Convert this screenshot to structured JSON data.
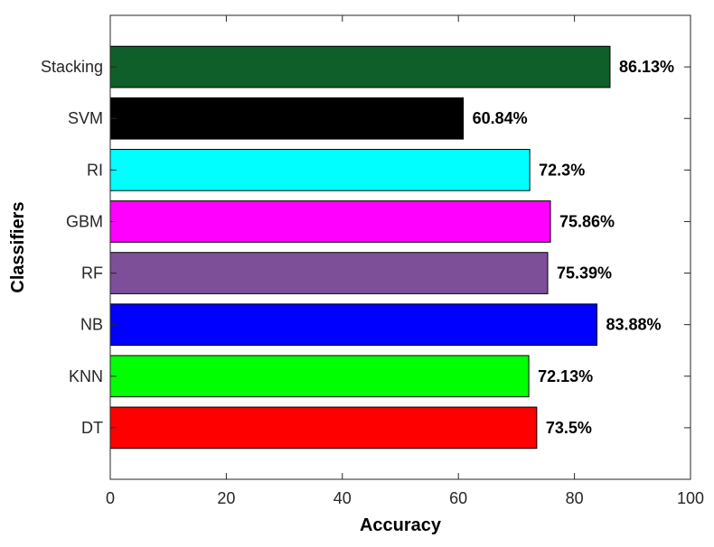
{
  "chart_data": {
    "type": "bar",
    "orientation": "horizontal",
    "categories": [
      "DT",
      "KNN",
      "NB",
      "RF",
      "GBM",
      "RI",
      "SVM",
      "Stacking"
    ],
    "values": [
      73.5,
      72.13,
      83.88,
      75.39,
      75.86,
      72.3,
      60.84,
      86.13
    ],
    "data_labels": [
      "73.5%",
      "72.13%",
      "83.88%",
      "75.39%",
      "75.86%",
      "72.3%",
      "60.84%",
      "86.13%"
    ],
    "colors": [
      "#ff0000",
      "#00ff00",
      "#0000ff",
      "#7e4f99",
      "#ff00ff",
      "#00ffff",
      "#000000",
      "#0f5f2a"
    ],
    "xlabel": "Accuracy",
    "ylabel": "Classifiers",
    "xlim": [
      0,
      100
    ],
    "xticks": [
      0,
      20,
      40,
      60,
      80,
      100
    ],
    "x_tick_labels": [
      "0",
      "20",
      "40",
      "60",
      "80",
      "100"
    ],
    "grid": false,
    "legend": "none"
  }
}
